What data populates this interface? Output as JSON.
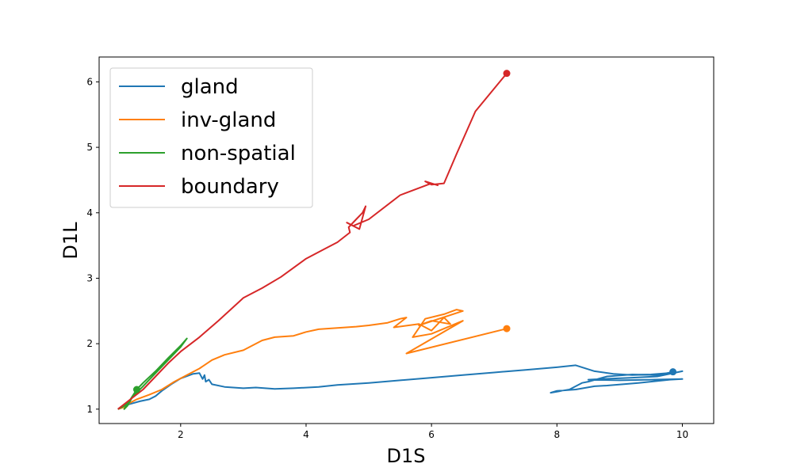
{
  "chart_data": {
    "type": "line",
    "xlabel": "D1S",
    "ylabel": "D1L",
    "xlim": [
      0.7,
      10.5
    ],
    "ylim": [
      0.78,
      6.38
    ],
    "xticks": [
      2,
      4,
      6,
      8,
      10
    ],
    "yticks": [
      1,
      2,
      3,
      4,
      5,
      6
    ],
    "grid": false,
    "legend_position": "top-left",
    "series": [
      {
        "name": "gland",
        "color": "#1f77b4",
        "points": [
          [
            1.0,
            1.0
          ],
          [
            1.1,
            1.05
          ],
          [
            1.2,
            1.08
          ],
          [
            1.35,
            1.12
          ],
          [
            1.5,
            1.15
          ],
          [
            1.6,
            1.2
          ],
          [
            1.7,
            1.28
          ],
          [
            1.85,
            1.38
          ],
          [
            2.0,
            1.47
          ],
          [
            2.2,
            1.54
          ],
          [
            2.3,
            1.55
          ],
          [
            2.35,
            1.46
          ],
          [
            2.38,
            1.52
          ],
          [
            2.4,
            1.42
          ],
          [
            2.45,
            1.45
          ],
          [
            2.5,
            1.38
          ],
          [
            2.7,
            1.34
          ],
          [
            3.0,
            1.32
          ],
          [
            3.2,
            1.33
          ],
          [
            3.5,
            1.31
          ],
          [
            3.8,
            1.32
          ],
          [
            4.2,
            1.34
          ],
          [
            4.5,
            1.37
          ],
          [
            5.0,
            1.4
          ],
          [
            5.5,
            1.44
          ],
          [
            6.0,
            1.48
          ],
          [
            6.5,
            1.52
          ],
          [
            7.0,
            1.56
          ],
          [
            7.5,
            1.6
          ],
          [
            8.0,
            1.64
          ],
          [
            8.3,
            1.67
          ],
          [
            8.6,
            1.58
          ],
          [
            8.9,
            1.54
          ],
          [
            9.2,
            1.52
          ],
          [
            9.5,
            1.53
          ],
          [
            9.9,
            1.56
          ],
          [
            10.0,
            1.58
          ],
          [
            9.6,
            1.5
          ],
          [
            9.2,
            1.48
          ],
          [
            8.7,
            1.46
          ],
          [
            8.5,
            1.45
          ],
          [
            9.0,
            1.44
          ],
          [
            9.5,
            1.45
          ],
          [
            10.0,
            1.46
          ],
          [
            9.8,
            1.45
          ],
          [
            9.3,
            1.4
          ],
          [
            8.8,
            1.36
          ],
          [
            8.6,
            1.35
          ],
          [
            8.3,
            1.3
          ],
          [
            8.0,
            1.28
          ],
          [
            7.9,
            1.25
          ],
          [
            8.2,
            1.3
          ],
          [
            8.4,
            1.4
          ],
          [
            8.5,
            1.42
          ],
          [
            8.8,
            1.5
          ],
          [
            9.2,
            1.53
          ],
          [
            9.6,
            1.52
          ],
          [
            9.85,
            1.57
          ]
        ]
      },
      {
        "name": "inv-gland",
        "color": "#ff7f0e",
        "points": [
          [
            1.0,
            1.0
          ],
          [
            1.1,
            1.03
          ],
          [
            1.2,
            1.1
          ],
          [
            1.3,
            1.15
          ],
          [
            1.5,
            1.22
          ],
          [
            1.7,
            1.3
          ],
          [
            1.9,
            1.42
          ],
          [
            2.1,
            1.52
          ],
          [
            2.3,
            1.62
          ],
          [
            2.5,
            1.75
          ],
          [
            2.7,
            1.83
          ],
          [
            3.0,
            1.9
          ],
          [
            3.3,
            2.05
          ],
          [
            3.5,
            2.1
          ],
          [
            3.8,
            2.12
          ],
          [
            4.0,
            2.18
          ],
          [
            4.2,
            2.22
          ],
          [
            4.5,
            2.24
          ],
          [
            4.8,
            2.26
          ],
          [
            5.0,
            2.28
          ],
          [
            5.3,
            2.32
          ],
          [
            5.5,
            2.38
          ],
          [
            5.6,
            2.4
          ],
          [
            5.4,
            2.25
          ],
          [
            5.8,
            2.3
          ],
          [
            6.0,
            2.2
          ],
          [
            6.2,
            2.4
          ],
          [
            6.3,
            2.3
          ],
          [
            6.0,
            2.35
          ],
          [
            5.8,
            2.28
          ],
          [
            6.5,
            2.5
          ],
          [
            6.4,
            2.52
          ],
          [
            6.2,
            2.45
          ],
          [
            5.9,
            2.38
          ],
          [
            5.7,
            2.1
          ],
          [
            6.0,
            2.15
          ],
          [
            6.5,
            2.35
          ],
          [
            5.6,
            1.85
          ],
          [
            7.2,
            2.23
          ]
        ]
      },
      {
        "name": "non-spatial",
        "color": "#2ca02c",
        "points": [
          [
            1.0,
            1.0
          ],
          [
            1.1,
            1.05
          ],
          [
            1.2,
            1.15
          ],
          [
            1.3,
            1.25
          ],
          [
            1.4,
            1.35
          ],
          [
            1.5,
            1.45
          ],
          [
            1.6,
            1.55
          ],
          [
            1.7,
            1.65
          ],
          [
            1.8,
            1.75
          ],
          [
            1.9,
            1.85
          ],
          [
            2.0,
            1.95
          ],
          [
            2.1,
            2.08
          ],
          [
            2.0,
            1.97
          ],
          [
            1.8,
            1.78
          ],
          [
            1.6,
            1.58
          ],
          [
            1.4,
            1.4
          ],
          [
            1.3,
            1.3
          ],
          [
            1.15,
            1.05
          ],
          [
            1.1,
            1.0
          ],
          [
            1.3,
            1.3
          ]
        ]
      },
      {
        "name": "boundary",
        "color": "#d62728",
        "points": [
          [
            1.0,
            1.0
          ],
          [
            1.2,
            1.15
          ],
          [
            1.4,
            1.3
          ],
          [
            1.6,
            1.5
          ],
          [
            1.8,
            1.7
          ],
          [
            2.0,
            1.88
          ],
          [
            2.3,
            2.1
          ],
          [
            2.6,
            2.35
          ],
          [
            3.0,
            2.7
          ],
          [
            3.3,
            2.85
          ],
          [
            3.6,
            3.02
          ],
          [
            4.0,
            3.3
          ],
          [
            4.3,
            3.45
          ],
          [
            4.5,
            3.55
          ],
          [
            4.7,
            3.7
          ],
          [
            4.68,
            3.78
          ],
          [
            4.8,
            3.9
          ],
          [
            4.9,
            4.0
          ],
          [
            4.95,
            4.1
          ],
          [
            4.85,
            3.75
          ],
          [
            4.65,
            3.85
          ],
          [
            4.75,
            3.8
          ],
          [
            5.0,
            3.9
          ],
          [
            5.5,
            4.27
          ],
          [
            6.0,
            4.45
          ],
          [
            6.1,
            4.42
          ],
          [
            5.9,
            4.48
          ],
          [
            6.0,
            4.43
          ],
          [
            6.2,
            4.45
          ],
          [
            6.4,
            4.9
          ],
          [
            6.7,
            5.55
          ],
          [
            7.2,
            6.13
          ]
        ]
      }
    ],
    "endpoint_markers": [
      {
        "series": "gland",
        "x": 9.85,
        "y": 1.57
      },
      {
        "series": "inv-gland",
        "x": 7.2,
        "y": 2.23
      },
      {
        "series": "non-spatial",
        "x": 1.3,
        "y": 1.3
      },
      {
        "series": "boundary",
        "x": 7.2,
        "y": 6.13
      }
    ]
  }
}
